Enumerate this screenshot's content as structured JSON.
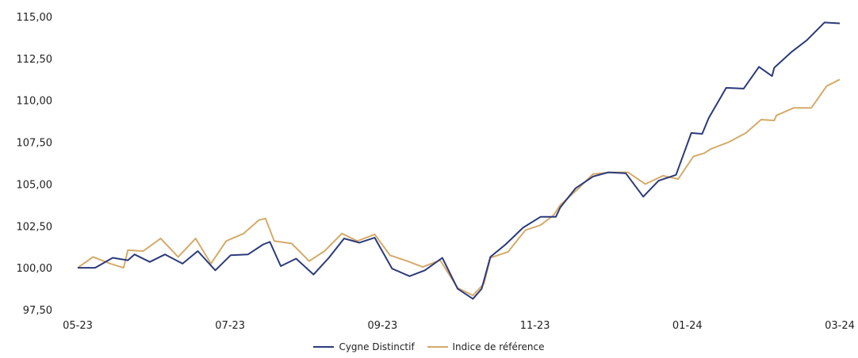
{
  "chart_data": {
    "type": "line",
    "ylim": [
      97.5,
      115
    ],
    "y_ticks": [
      "97,50",
      "100,00",
      "102,50",
      "105,00",
      "107,50",
      "110,00",
      "112,50",
      "115,00"
    ],
    "y_tick_values": [
      97.5,
      100,
      102.5,
      105,
      107.5,
      110,
      112.5,
      115
    ],
    "x_ticks": [
      "05-23",
      "07-23",
      "09-23",
      "11-23",
      "01-24",
      "03-24"
    ],
    "grid": false,
    "legend": "bottom",
    "series": [
      {
        "name": "Cygne Distinctif",
        "color": "#2b3a7a",
        "points": [
          [
            0,
            100.0
          ],
          [
            0.8,
            100.0
          ],
          [
            1.6,
            100.6
          ],
          [
            2.3,
            100.45
          ],
          [
            2.6,
            100.8
          ],
          [
            3.3,
            100.35
          ],
          [
            4.0,
            100.8
          ],
          [
            4.8,
            100.25
          ],
          [
            5.5,
            101.0
          ],
          [
            6.3,
            99.85
          ],
          [
            7.0,
            100.75
          ],
          [
            7.8,
            100.8
          ],
          [
            8.5,
            101.4
          ],
          [
            8.8,
            101.55
          ],
          [
            9.3,
            100.1
          ],
          [
            10.0,
            100.55
          ],
          [
            10.8,
            99.6
          ],
          [
            11.5,
            100.6
          ],
          [
            12.2,
            101.75
          ],
          [
            12.9,
            101.5
          ],
          [
            13.6,
            101.8
          ],
          [
            14.4,
            99.95
          ],
          [
            15.2,
            99.5
          ],
          [
            15.9,
            99.85
          ],
          [
            16.7,
            100.6
          ],
          [
            17.4,
            98.75
          ],
          [
            18.1,
            98.15
          ],
          [
            18.5,
            98.75
          ],
          [
            18.9,
            100.65
          ],
          [
            19.6,
            101.4
          ],
          [
            20.4,
            102.4
          ],
          [
            21.2,
            103.05
          ],
          [
            21.9,
            103.05
          ],
          [
            22.1,
            103.6
          ],
          [
            22.8,
            104.75
          ],
          [
            23.6,
            105.45
          ],
          [
            24.3,
            105.7
          ],
          [
            25.1,
            105.65
          ],
          [
            25.9,
            104.25
          ],
          [
            26.6,
            105.2
          ],
          [
            27.4,
            105.55
          ],
          [
            28.1,
            108.05
          ],
          [
            28.6,
            108.0
          ],
          [
            28.9,
            108.95
          ],
          [
            29.7,
            110.75
          ],
          [
            30.5,
            110.7
          ],
          [
            31.2,
            112.0
          ],
          [
            31.8,
            111.45
          ],
          [
            31.9,
            111.95
          ],
          [
            32.7,
            112.9
          ],
          [
            33.4,
            113.6
          ],
          [
            34.2,
            114.65
          ],
          [
            34.9,
            114.6
          ]
        ]
      },
      {
        "name": "Indice de référence",
        "color": "#d4aa6a",
        "points": [
          [
            0,
            100.0
          ],
          [
            0.7,
            100.65
          ],
          [
            1.5,
            100.25
          ],
          [
            2.1,
            100.0
          ],
          [
            2.3,
            101.05
          ],
          [
            3.0,
            101.0
          ],
          [
            3.8,
            101.75
          ],
          [
            4.6,
            100.65
          ],
          [
            5.4,
            101.75
          ],
          [
            6.1,
            100.25
          ],
          [
            6.8,
            101.6
          ],
          [
            7.6,
            102.05
          ],
          [
            8.3,
            102.85
          ],
          [
            8.6,
            102.95
          ],
          [
            9.0,
            101.6
          ],
          [
            9.8,
            101.45
          ],
          [
            10.6,
            100.4
          ],
          [
            11.3,
            101.0
          ],
          [
            12.1,
            102.05
          ],
          [
            12.8,
            101.6
          ],
          [
            13.6,
            102.0
          ],
          [
            14.3,
            100.75
          ],
          [
            15.1,
            100.4
          ],
          [
            15.8,
            100.05
          ],
          [
            16.6,
            100.45
          ],
          [
            17.4,
            98.8
          ],
          [
            18.1,
            98.35
          ],
          [
            18.6,
            99.05
          ],
          [
            18.9,
            100.6
          ],
          [
            19.7,
            100.95
          ],
          [
            20.5,
            102.25
          ],
          [
            21.2,
            102.55
          ],
          [
            21.8,
            103.15
          ],
          [
            22.1,
            103.75
          ],
          [
            22.9,
            104.7
          ],
          [
            23.6,
            105.6
          ],
          [
            24.4,
            105.7
          ],
          [
            25.2,
            105.7
          ],
          [
            26.0,
            105.0
          ],
          [
            26.8,
            105.5
          ],
          [
            27.5,
            105.3
          ],
          [
            28.2,
            106.65
          ],
          [
            28.7,
            106.85
          ],
          [
            29.0,
            107.1
          ],
          [
            29.8,
            107.5
          ],
          [
            30.6,
            108.05
          ],
          [
            31.3,
            108.85
          ],
          [
            31.9,
            108.8
          ],
          [
            32.0,
            109.1
          ],
          [
            32.8,
            109.55
          ],
          [
            33.6,
            109.55
          ],
          [
            34.3,
            110.85
          ],
          [
            34.9,
            111.25
          ]
        ]
      }
    ]
  }
}
